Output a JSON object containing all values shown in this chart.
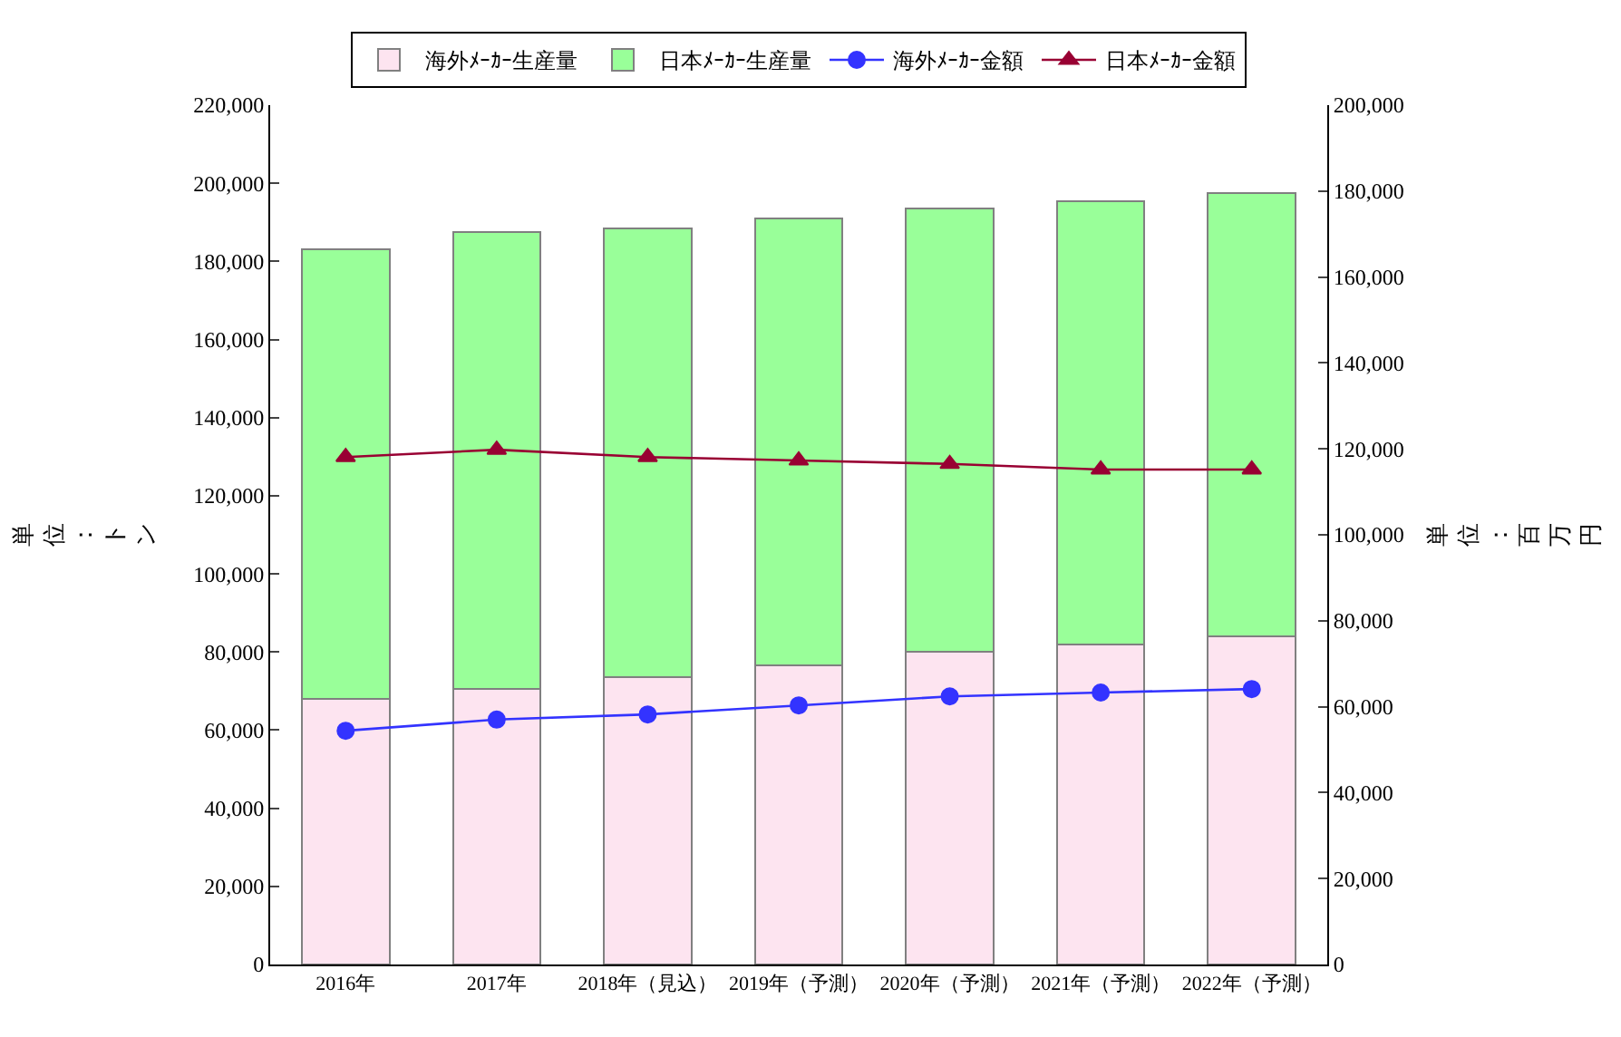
{
  "chart_data": {
    "type": "bar",
    "stacked": true,
    "ylabel": "単位：トン",
    "y2label": "単位：百万円",
    "categories": [
      "2016年",
      "2017年",
      "2018年（見込）",
      "2019年（予測）",
      "2020年（予測）",
      "2021年（予測）",
      "2022年（予測）"
    ],
    "series": [
      {
        "name": "海外ﾒｰｶｰ生産量",
        "color": "#fde4f0",
        "values": [
          68000,
          70500,
          73500,
          76500,
          80000,
          82000,
          84000
        ]
      },
      {
        "name": "日本ﾒｰｶｰ生産量",
        "color": "#99ff99",
        "values": [
          115000,
          117000,
          115000,
          114500,
          113500,
          113500,
          113500
        ]
      },
      {
        "name": "海外ﾒｰｶｰ金額",
        "type": "line",
        "axis": "y2",
        "marker": "circle",
        "color": "#3333ff",
        "values": [
          54400,
          57000,
          58200,
          60300,
          62400,
          63300,
          64100
        ]
      },
      {
        "name": "日本ﾒｰｶｰ金額",
        "type": "line",
        "axis": "y2",
        "marker": "triangle",
        "color": "#990033",
        "values": [
          118100,
          119800,
          118100,
          117300,
          116500,
          115200,
          115200
        ]
      }
    ],
    "ylim": [
      0,
      220000
    ],
    "yticks": [
      {
        "value": 0,
        "label": "0"
      },
      {
        "value": 20000,
        "label": "20,000"
      },
      {
        "value": 40000,
        "label": "40,000"
      },
      {
        "value": 60000,
        "label": "60,000"
      },
      {
        "value": 80000,
        "label": "80,000"
      },
      {
        "value": 100000,
        "label": "100,000"
      },
      {
        "value": 120000,
        "label": "120,000"
      },
      {
        "value": 140000,
        "label": "140,000"
      },
      {
        "value": 160000,
        "label": "160,000"
      },
      {
        "value": 180000,
        "label": "180,000"
      },
      {
        "value": 200000,
        "label": "200,000"
      },
      {
        "value": 220000,
        "label": "220,000"
      }
    ],
    "y2lim": [
      0,
      200000
    ],
    "y2ticks": [
      {
        "value": 0,
        "label": "0"
      },
      {
        "value": 20000,
        "label": "20,000"
      },
      {
        "value": 40000,
        "label": "40,000"
      },
      {
        "value": 60000,
        "label": "60,000"
      },
      {
        "value": 80000,
        "label": "80,000"
      },
      {
        "value": 100000,
        "label": "100,000"
      },
      {
        "value": 120000,
        "label": "120,000"
      },
      {
        "value": 140000,
        "label": "140,000"
      },
      {
        "value": 160000,
        "label": "160,000"
      },
      {
        "value": 180000,
        "label": "180,000"
      },
      {
        "value": 200000,
        "label": "200,000"
      }
    ],
    "grid": false,
    "legend": "top"
  }
}
